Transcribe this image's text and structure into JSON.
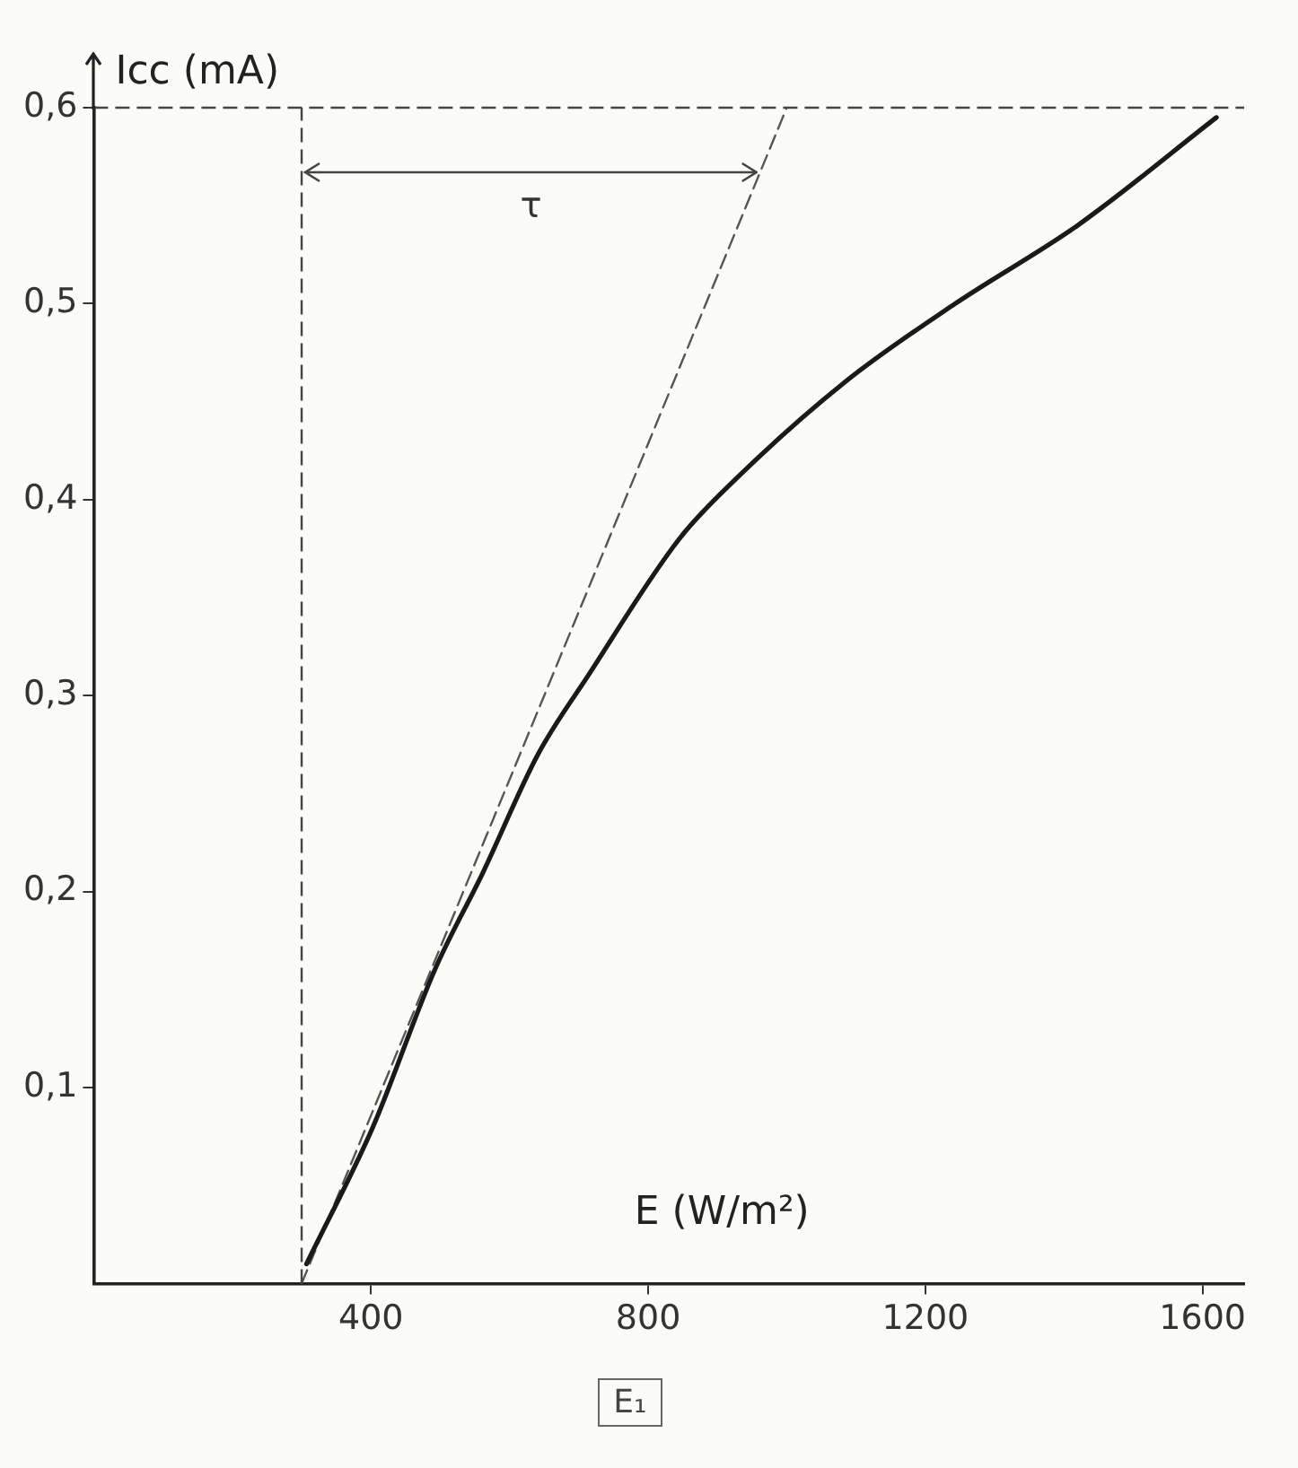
{
  "chart_data": {
    "type": "line",
    "xlabel": "E (W/m²)",
    "ylabel": "Icc (mA)",
    "xlim": [
      0,
      1660
    ],
    "xticks": [
      400,
      800,
      1200,
      1600
    ],
    "ylim": [
      0,
      0.6
    ],
    "yticks": [
      {
        "value": 0.1,
        "label": "0,1"
      },
      {
        "value": 0.2,
        "label": "0,2"
      },
      {
        "value": 0.3,
        "label": "0,3"
      },
      {
        "value": 0.4,
        "label": "0,4"
      },
      {
        "value": 0.5,
        "label": "0,5"
      },
      {
        "value": 0.6,
        "label": "0,6"
      }
    ],
    "grid": false,
    "legend": false,
    "marker": "none",
    "series": [
      {
        "color": "#1a1a1a",
        "line_style": "solid",
        "x": [
          307,
          403,
          492,
          562,
          641,
          713,
          845,
          925,
          1084,
          1243,
          1420,
          1620
        ],
        "values": [
          0.01,
          0.08,
          0.16,
          0.21,
          0.27,
          0.31,
          0.38,
          0.41,
          0.46,
          0.5,
          0.54,
          0.595
        ]
      },
      {
        "color": "#555555",
        "line_style": "dashed",
        "x": [
          300,
          1000
        ],
        "values": [
          0,
          0.6
        ]
      }
    ],
    "ref_lines": [
      {
        "axis": "x",
        "value": 300,
        "line_style": "dashed",
        "color": "#444444"
      },
      {
        "axis": "y",
        "value": 0.6,
        "line_style": "dashed",
        "color": "#444444"
      }
    ],
    "annotations": [
      "τ",
      "E₁"
    ]
  }
}
